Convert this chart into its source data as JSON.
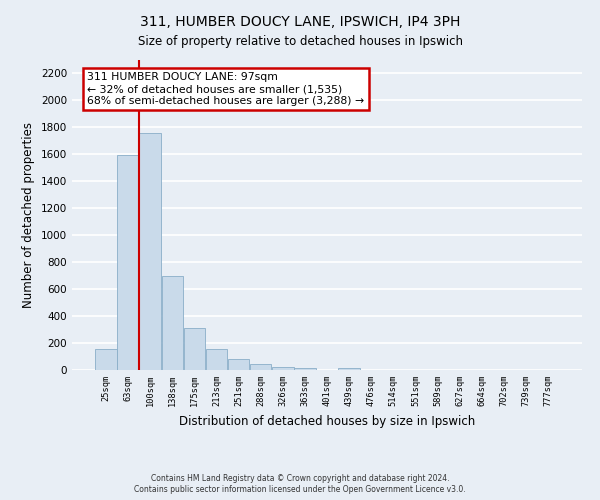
{
  "title": "311, HUMBER DOUCY LANE, IPSWICH, IP4 3PH",
  "subtitle": "Size of property relative to detached houses in Ipswich",
  "xlabel": "Distribution of detached houses by size in Ipswich",
  "ylabel": "Number of detached properties",
  "bar_color": "#c9daea",
  "bar_edge_color": "#8aaec8",
  "figure_bg": "#e8eef5",
  "axes_bg": "#e8eef5",
  "grid_color": "#ffffff",
  "categories": [
    "25sqm",
    "63sqm",
    "100sqm",
    "138sqm",
    "175sqm",
    "213sqm",
    "251sqm",
    "288sqm",
    "326sqm",
    "363sqm",
    "401sqm",
    "439sqm",
    "476sqm",
    "514sqm",
    "551sqm",
    "589sqm",
    "627sqm",
    "664sqm",
    "702sqm",
    "739sqm",
    "777sqm"
  ],
  "values": [
    155,
    1595,
    1755,
    700,
    315,
    155,
    80,
    45,
    20,
    15,
    0,
    15,
    0,
    0,
    0,
    0,
    0,
    0,
    0,
    0,
    0
  ],
  "ylim": [
    0,
    2300
  ],
  "yticks": [
    0,
    200,
    400,
    600,
    800,
    1000,
    1200,
    1400,
    1600,
    1800,
    2000,
    2200
  ],
  "property_line_index": 2,
  "property_label": "311 HUMBER DOUCY LANE: 97sqm",
  "annotation_line1": "← 32% of detached houses are smaller (1,535)",
  "annotation_line2": "68% of semi-detached houses are larger (3,288) →",
  "annotation_box_color": "#ffffff",
  "annotation_box_edge": "#cc0000",
  "property_line_color": "#cc0000",
  "footer1": "Contains HM Land Registry data © Crown copyright and database right 2024.",
  "footer2": "Contains public sector information licensed under the Open Government Licence v3.0."
}
